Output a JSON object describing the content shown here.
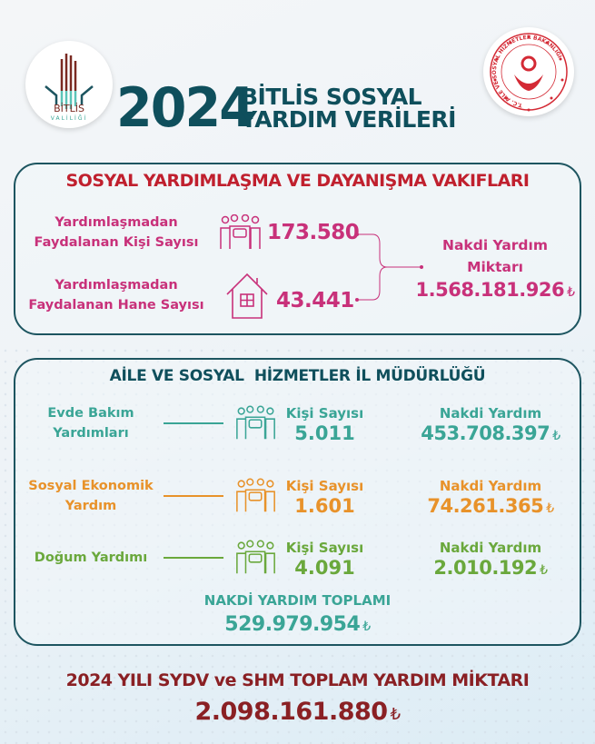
{
  "header": {
    "year": "2024",
    "title_line1": "BİTLİS SOSYAL",
    "title_line2": "YARDIM VERİLERİ",
    "left_logo_text": "BİTLİS",
    "left_logo_subtext": "VALİLİĞİ",
    "right_logo_text": "T.C. AİLE VE SOSYAL HİZMETLER BAKANLIĞI"
  },
  "colors": {
    "primary": "#0f4f5c",
    "sydv": "#c8317a",
    "sydv_title": "#c0202e",
    "row1": "#3aa596",
    "row2": "#e8922a",
    "row3": "#6aa83c",
    "total": "#8a2024"
  },
  "sydv": {
    "title": "SOSYAL YARDIMLAŞMA VE DAYANIŞMA VAKIFLARI",
    "persons": {
      "label1": "Yardımlaşmadan",
      "label2": "Faydalanan Kişi Sayısı",
      "value": "173.580",
      "icon": "people-group-icon"
    },
    "households": {
      "label1": "Yardımlaşmadan",
      "label2": "Faydalanan Hane Sayısı",
      "value": "43.441",
      "icon": "house-icon"
    },
    "cash": {
      "label1": "Nakdi Yardım",
      "label2": "Miktarı",
      "value": "1.568.181.926",
      "currency": "₺"
    }
  },
  "ashm": {
    "title": "AİLE VE SOSYAL  HİZMETLER İL MÜDÜRLÜĞÜ",
    "rows": [
      {
        "name1": "Evde Bakım",
        "name2": "Yardımları",
        "count_label": "Kişi Sayısı",
        "count": "5.011",
        "cash_label": "Nakdi Yardım",
        "cash": "453.708.397",
        "currency": "₺"
      },
      {
        "name1": "Sosyal Ekonomik",
        "name2": "Yardım",
        "count_label": "Kişi Sayısı",
        "count": "1.601",
        "cash_label": "Nakdi Yardım",
        "cash": "74.261.365",
        "currency": "₺"
      },
      {
        "name1": "Doğum Yardımı",
        "name2": "",
        "count_label": "Kişi Sayısı",
        "count": "4.091",
        "cash_label": "Nakdi Yardım",
        "cash": "2.010.192",
        "currency": "₺"
      }
    ],
    "total_label": "NAKDİ YARDIM TOPLAMI",
    "total": "529.979.954",
    "currency": "₺"
  },
  "grand_total": {
    "label": "2024 YILI SYDV ve SHM TOPLAM YARDIM MİKTARI",
    "value": "2.098.161.880",
    "currency": "₺"
  }
}
